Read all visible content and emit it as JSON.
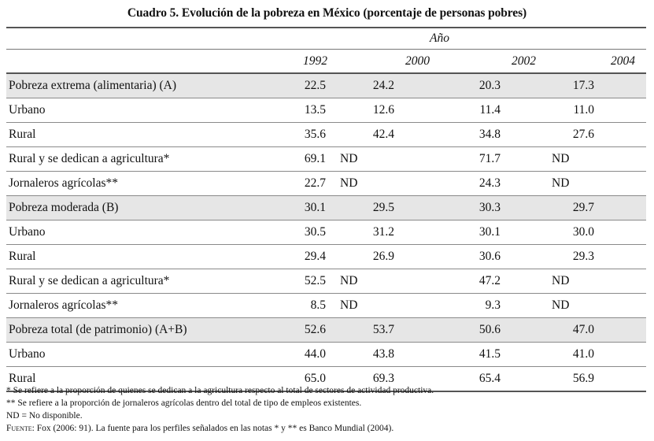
{
  "title": "Cuadro 5. Evolución de la pobreza en México (porcentaje de personas pobres)",
  "header": {
    "group_label": "Año",
    "years": [
      "1992",
      "2000",
      "2002",
      "2004"
    ]
  },
  "rows": [
    {
      "label": "Pobreza extrema (alimentaria) (A)",
      "values": [
        "22.5",
        "24.2",
        "20.3",
        "17.3"
      ],
      "highlight": true
    },
    {
      "label": "Urbano",
      "values": [
        "13.5",
        "12.6",
        "11.4",
        "11.0"
      ]
    },
    {
      "label": "Rural",
      "values": [
        "35.6",
        "42.4",
        "34.8",
        "27.6"
      ]
    },
    {
      "label": "Rural y se dedican a agricultura*",
      "values": [
        "69.1",
        "ND",
        "71.7",
        "ND"
      ]
    },
    {
      "label": "Jornaleros agrícolas**",
      "values": [
        "22.7",
        "ND",
        "24.3",
        "ND"
      ]
    },
    {
      "label": "Pobreza moderada (B)",
      "values": [
        "30.1",
        "29.5",
        "30.3",
        "29.7"
      ],
      "highlight": true
    },
    {
      "label": "Urbano",
      "values": [
        "30.5",
        "31.2",
        "30.1",
        "30.0"
      ]
    },
    {
      "label": "Rural",
      "values": [
        "29.4",
        "26.9",
        "30.6",
        "29.3"
      ]
    },
    {
      "label": "Rural y se dedican a agricultura*",
      "values": [
        "52.5",
        "ND",
        "47.2",
        "ND"
      ]
    },
    {
      "label": "Jornaleros agrícolas**",
      "values": [
        "8.5",
        "ND",
        "9.3",
        "ND"
      ]
    },
    {
      "label": "Pobreza total (de patrimonio) (A+B)",
      "values": [
        "52.6",
        "53.7",
        "50.6",
        "47.0"
      ],
      "highlight": true
    },
    {
      "label": "Urbano",
      "values": [
        "44.0",
        "43.8",
        "41.5",
        "41.0"
      ]
    },
    {
      "label": "Rural",
      "values": [
        "65.0",
        "69.3",
        "65.4",
        "56.9"
      ]
    }
  ],
  "notes": {
    "note1": "* Se refiere a la proporción de quienes se dedican a la agricultura respecto al total de sectores de actividad productiva.",
    "note2": "** Se refiere a la proporción de jornaleros agrícolas dentro del total de tipo de empleos existentes.",
    "note3": "ND = No disponible.",
    "source_label": "Fuente",
    "source_text": ": Fox (2006: 91). La fuente para los perfiles señalados en las notas * y ** es Banco Mundial (2004)."
  }
}
